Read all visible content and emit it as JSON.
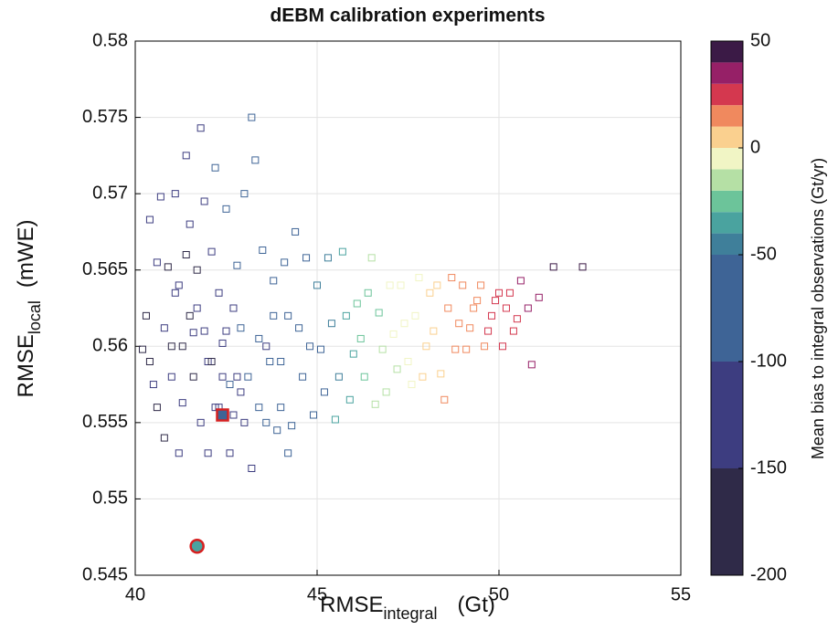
{
  "chart_data": {
    "type": "scatter",
    "title": "dEBM calibration experiments",
    "x_label": {
      "main": "RMSE",
      "sub": "integral",
      "unit": "(Gt)"
    },
    "y_label": {
      "main": "RMSE",
      "sub": "local",
      "unit": "(mWE)"
    },
    "xlim": [
      40,
      55
    ],
    "xticks": [
      40,
      45,
      50,
      55
    ],
    "ylim": [
      0.545,
      0.58
    ],
    "yticks": [
      0.545,
      0.55,
      0.555,
      0.56,
      0.565,
      0.57,
      0.575,
      0.58
    ],
    "grid": true,
    "marker": "square",
    "x": [
      40.2,
      40.4,
      40.6,
      40.8,
      41.0,
      41.2,
      41.4,
      41.6,
      41.8,
      42.0,
      40.3,
      40.5,
      40.7,
      40.9,
      41.1,
      41.3,
      41.5,
      41.7,
      41.9,
      42.1,
      42.2,
      42.4,
      42.6,
      42.8,
      43.0,
      43.2,
      43.4,
      43.6,
      43.8,
      44.0,
      42.3,
      42.5,
      42.7,
      42.9,
      43.1,
      43.3,
      43.5,
      43.7,
      43.9,
      44.1,
      44.2,
      44.4,
      44.6,
      44.8,
      45.0,
      45.2,
      45.4,
      45.6,
      45.8,
      46.0,
      44.3,
      44.5,
      44.7,
      44.9,
      45.1,
      45.3,
      45.5,
      45.7,
      45.9,
      46.1,
      46.2,
      46.4,
      46.6,
      46.8,
      47.0,
      47.2,
      47.4,
      47.6,
      47.8,
      48.0,
      46.3,
      46.5,
      46.7,
      46.9,
      47.1,
      47.3,
      47.5,
      47.7,
      47.9,
      48.1,
      48.2,
      48.4,
      48.6,
      48.8,
      49.0,
      49.2,
      49.4,
      49.6,
      49.8,
      50.0,
      48.3,
      48.5,
      48.7,
      48.9,
      49.1,
      49.3,
      49.5,
      49.7,
      50.2,
      50.4,
      50.6,
      50.8,
      50.9,
      51.1,
      51.5,
      52.3,
      50.3,
      50.5,
      50.1,
      49.9,
      40.4,
      40.6,
      40.8,
      41.0,
      41.2,
      41.4,
      41.6,
      41.8,
      42.0,
      42.2,
      42.4,
      42.6,
      42.8,
      43.0,
      43.2,
      43.4,
      43.6,
      43.8,
      44.0,
      44.2,
      41.1,
      41.3,
      41.5,
      41.7,
      41.9,
      42.1,
      42.3,
      42.5,
      42.7,
      42.9
    ],
    "values": [
      0.5598,
      0.5683,
      0.5655,
      0.5612,
      0.558,
      0.564,
      0.5725,
      0.5609,
      0.5743,
      0.559,
      0.562,
      0.5575,
      0.5698,
      0.5652,
      0.5635,
      0.5563,
      0.568,
      0.5625,
      0.5695,
      0.5662,
      0.5717,
      0.5602,
      0.5575,
      0.5653,
      0.57,
      0.575,
      0.5605,
      0.555,
      0.5643,
      0.559,
      0.5635,
      0.569,
      0.5555,
      0.5612,
      0.558,
      0.5722,
      0.5663,
      0.559,
      0.5545,
      0.5655,
      0.562,
      0.5675,
      0.558,
      0.56,
      0.564,
      0.557,
      0.5615,
      0.558,
      0.562,
      0.5595,
      0.5548,
      0.5612,
      0.5658,
      0.5555,
      0.5598,
      0.5658,
      0.5552,
      0.5662,
      0.5565,
      0.5628,
      0.5605,
      0.5635,
      0.5562,
      0.5598,
      0.564,
      0.5585,
      0.5615,
      0.5575,
      0.5645,
      0.56,
      0.558,
      0.5658,
      0.5622,
      0.557,
      0.5608,
      0.564,
      0.559,
      0.562,
      0.558,
      0.5635,
      0.561,
      0.5582,
      0.5625,
      0.5598,
      0.564,
      0.5612,
      0.563,
      0.56,
      0.562,
      0.5635,
      0.564,
      0.5565,
      0.5645,
      0.5615,
      0.5598,
      0.5625,
      0.564,
      0.561,
      0.5625,
      0.561,
      0.5643,
      0.5625,
      0.5588,
      0.5632,
      0.5652,
      0.5652,
      0.5635,
      0.5618,
      0.56,
      0.563,
      0.559,
      0.556,
      0.554,
      0.56,
      0.553,
      0.566,
      0.558,
      0.555,
      0.553,
      0.556,
      0.558,
      0.553,
      0.558,
      0.555,
      0.552,
      0.556,
      0.56,
      0.562,
      0.556,
      0.553,
      0.57,
      0.56,
      0.562,
      0.565,
      0.561,
      0.559,
      0.556,
      0.561,
      0.5625,
      0.557
    ],
    "color_values": [
      -160,
      -140,
      -150,
      -130,
      -120,
      -150,
      -130,
      -110,
      -120,
      -110,
      -170,
      -150,
      -140,
      -160,
      -140,
      -120,
      -150,
      -130,
      -110,
      -140,
      -100,
      -110,
      -100,
      -90,
      -100,
      -80,
      -90,
      -90,
      -80,
      -70,
      -120,
      -90,
      -110,
      -100,
      -90,
      -90,
      -80,
      -80,
      -90,
      -70,
      -70,
      -60,
      -70,
      -60,
      -50,
      -60,
      -45,
      -50,
      -40,
      -35,
      -80,
      -65,
      -60,
      -60,
      -55,
      -45,
      -40,
      -40,
      -35,
      -30,
      -25,
      -25,
      -20,
      -15,
      -10,
      -15,
      -5,
      -5,
      -5,
      5,
      -30,
      -20,
      -25,
      -15,
      -10,
      -10,
      -5,
      -5,
      0,
      5,
      5,
      5,
      10,
      10,
      10,
      15,
      15,
      15,
      20,
      20,
      5,
      10,
      10,
      12,
      12,
      18,
      18,
      20,
      25,
      25,
      30,
      30,
      30,
      35,
      45,
      45,
      28,
      28,
      22,
      20,
      -180,
      -170,
      -160,
      -170,
      -150,
      -170,
      -160,
      -150,
      -130,
      -140,
      -140,
      -130,
      -120,
      -110,
      -110,
      -100,
      -110,
      -100,
      -90,
      -90,
      -150,
      -170,
      -180,
      -160,
      -150,
      -160,
      -150,
      -130,
      -140,
      -120
    ],
    "highlights": [
      {
        "marker": "square",
        "x": 42.4,
        "y": 0.5555,
        "value": -80,
        "edge_color": "#d62020"
      },
      {
        "marker": "circle",
        "x": 41.7,
        "y": 0.5469,
        "value": -35,
        "edge_color": "#d62020"
      }
    ],
    "colorbar": {
      "label": "Mean bias to integral observations (Gt/yr)",
      "lim": [
        -200,
        50
      ],
      "ticks": [
        -200,
        -150,
        -100,
        -50,
        0,
        50
      ],
      "levels": [
        -200,
        -150,
        -100,
        -50,
        -40,
        -30,
        -20,
        -10,
        0,
        10,
        20,
        30,
        40,
        50
      ],
      "colors": [
        "#2f2a48",
        "#3d3d80",
        "#3e6496",
        "#3f7f9a",
        "#4aa39f",
        "#6cc49a",
        "#b5e0a5",
        "#f1f5c5",
        "#fad08f",
        "#f0895e",
        "#d4384f",
        "#962067",
        "#3b1a46"
      ]
    }
  }
}
